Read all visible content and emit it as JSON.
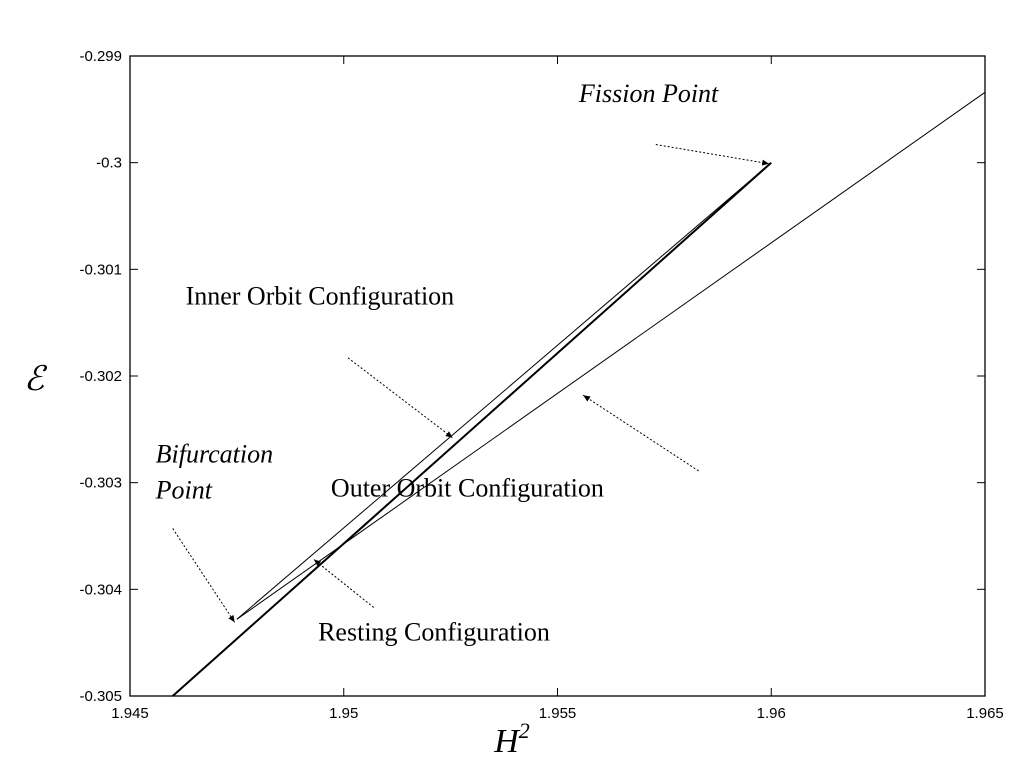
{
  "chart_data": {
    "type": "line",
    "title": "",
    "xlabel": "H",
    "xlabel_superscript": "2",
    "ylabel": "ℰ",
    "xlim": [
      1.945,
      1.965
    ],
    "ylim": [
      -0.305,
      -0.299
    ],
    "x_ticks": [
      "1.945",
      "1.95",
      "1.955",
      "1.96",
      "1.965"
    ],
    "y_ticks": [
      "-0.299",
      "-0.3",
      "-0.301",
      "-0.302",
      "-0.303",
      "-0.304",
      "-0.305"
    ],
    "grid": false,
    "series": [
      {
        "id": "resting",
        "stroke_width": 2,
        "x": [
          1.946,
          1.96
        ],
        "y": [
          -0.305,
          -0.3
        ]
      },
      {
        "id": "inner",
        "stroke_width": 1,
        "x": [
          1.9475,
          1.96
        ],
        "y": [
          -0.30428,
          -0.3
        ]
      },
      {
        "id": "outer",
        "stroke_width": 1,
        "x": [
          1.9475,
          1.965
        ],
        "y": [
          -0.30428,
          -0.29934
        ]
      }
    ],
    "annotations": [
      {
        "id": "fission",
        "lines": [
          "Fission Point"
        ],
        "italic": true,
        "text_x": 1.9555,
        "text_y": [
          -0.29943
        ],
        "arrow_from": [
          1.9573,
          -0.29983
        ],
        "arrow_to": [
          1.95995,
          -0.30001
        ]
      },
      {
        "id": "inner-orbit",
        "lines": [
          "Inner Orbit Configuration"
        ],
        "italic": false,
        "text_x": 1.9463,
        "text_y": [
          -0.30133
        ],
        "arrow_from": [
          1.9501,
          -0.30183
        ],
        "arrow_to": [
          1.95255,
          -0.30258
        ]
      },
      {
        "id": "outer-orbit",
        "lines": [
          "Outer Orbit Configuration"
        ],
        "italic": false,
        "text_x": 1.9497,
        "text_y": [
          -0.30313
        ],
        "arrow_from": [
          1.9583,
          -0.30289
        ],
        "arrow_to": [
          1.9556,
          -0.30218
        ]
      },
      {
        "id": "bifurcation",
        "lines": [
          "Bifurcation",
          "Point"
        ],
        "italic": true,
        "text_x": 1.9456,
        "text_y": [
          -0.30281,
          -0.30315
        ],
        "arrow_from": [
          1.946,
          -0.30343
        ],
        "arrow_to": [
          1.94745,
          -0.30431
        ]
      },
      {
        "id": "resting-label",
        "lines": [
          "Resting Configuration"
        ],
        "italic": false,
        "text_x": 1.9494,
        "text_y": [
          -0.30448
        ],
        "arrow_from": [
          1.9507,
          -0.30417
        ],
        "arrow_to": [
          1.9493,
          -0.30372
        ]
      }
    ]
  }
}
